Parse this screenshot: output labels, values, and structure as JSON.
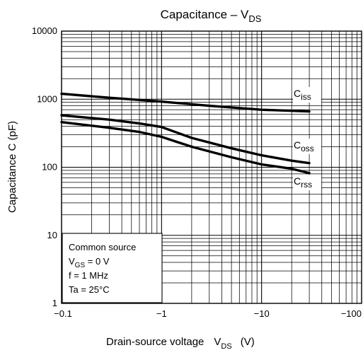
{
  "chart_data": {
    "type": "line",
    "title": "Capacitance – V",
    "title_sub": "DS",
    "xlabel": "Drain-source voltage",
    "xlabel_symbol": "V",
    "xlabel_symbol_sub": "DS",
    "xlabel_unit": "(V)",
    "ylabel": "Capacitance   C   (pF)",
    "x_scale": "log",
    "y_scale": "log",
    "x_axis_reversed": true,
    "xlim": [
      -0.1,
      -100
    ],
    "ylim": [
      1,
      10000
    ],
    "grid": true,
    "x_ticks": [
      "−0.1",
      "−1",
      "−10",
      "−100"
    ],
    "y_ticks": [
      "1",
      "10",
      "100",
      "1000",
      "10000"
    ],
    "series": [
      {
        "name": "Ciss",
        "label_main": "C",
        "label_sub": "iss",
        "x": [
          -0.1,
          -0.3,
          -1,
          -3,
          -10,
          -30
        ],
        "y": [
          1200,
          1050,
          920,
          800,
          700,
          660
        ]
      },
      {
        "name": "Coss",
        "label_main": "C",
        "label_sub": "oss",
        "x": [
          -0.1,
          -0.3,
          -0.6,
          -1,
          -2,
          -5,
          -10,
          -20,
          -30
        ],
        "y": [
          580,
          500,
          440,
          390,
          270,
          190,
          150,
          125,
          115
        ]
      },
      {
        "name": "Crss",
        "label_main": "C",
        "label_sub": "rss",
        "x": [
          -0.1,
          -0.3,
          -0.6,
          -1,
          -2,
          -5,
          -10,
          -20,
          -30
        ],
        "y": [
          460,
          380,
          330,
          280,
          200,
          140,
          110,
          95,
          82
        ]
      }
    ],
    "annotation": {
      "lines": [
        {
          "main": "Common source",
          "sub": "",
          "rest": ""
        },
        {
          "main": "V",
          "sub": "GS",
          "rest": " = 0 V"
        },
        {
          "main": "f = 1 MHz",
          "sub": "",
          "rest": ""
        },
        {
          "main": "Ta = 25°C",
          "sub": "",
          "rest": ""
        }
      ]
    },
    "colors": {
      "line": "#000000",
      "grid": "#000000",
      "background": "#ffffff"
    }
  }
}
